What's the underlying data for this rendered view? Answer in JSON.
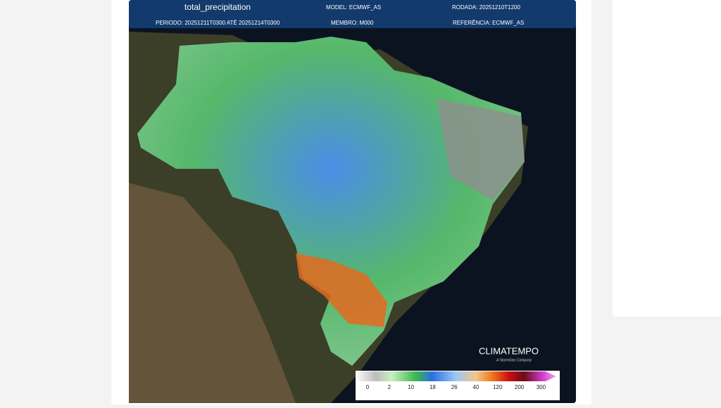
{
  "header": {
    "title": "total_precipitation",
    "model": "MODEL: ECMWF_AS",
    "rodada": "RODADA: 20251210T1200",
    "periodo": "PERIODO: 20251211T0300 ATÉ 20251214T0300",
    "membro": "MEMBRO: M000",
    "referencia": "REFERÊNCIA: ECMWF_AS"
  },
  "legend": {
    "ticks": [
      0,
      2,
      10,
      18,
      26,
      40,
      120,
      200,
      300
    ]
  },
  "logo": {
    "name": "CLIMATEMPO",
    "tagline": "A StormGeo Company"
  }
}
